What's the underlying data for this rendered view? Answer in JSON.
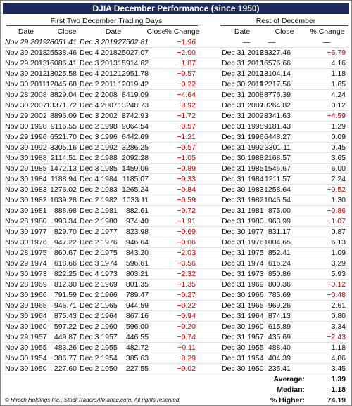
{
  "header": {
    "title": "DJIA December Performance (since 1950)",
    "groups": [
      "First Two December Trading Days",
      "Rest of December"
    ],
    "columns": [
      "Date",
      "Close",
      "Date",
      "Close",
      "% Change",
      "Date",
      "Close",
      "% Change"
    ]
  },
  "table": {
    "rows": [
      [
        "Nov 29 2019",
        "28051.41",
        "Dec 3 2019",
        "27502.81",
        "−1.96",
        "—",
        "—",
        "—"
      ],
      [
        "Nov 30 2018",
        "25538.46",
        "Dec 4 2018",
        "25027.07",
        "−2.00",
        "Dec 31 2018",
        "23327.46",
        "−6.79"
      ],
      [
        "Nov 29 2013",
        "16086.41",
        "Dec 3 2013",
        "15914.62",
        "−1.07",
        "Dec 31 2013",
        "16576.66",
        "4.16"
      ],
      [
        "Nov 30 2012",
        "13025.58",
        "Dec 4 2012",
        "12951.78",
        "−0.57",
        "Dec 31 2012",
        "13104.14",
        "1.18"
      ],
      [
        "Nov 30 2011",
        "12045.68",
        "Dec 2 2011",
        "12019.42",
        "−0.22",
        "Dec 30 2011",
        "12217.56",
        "1.65"
      ],
      [
        "Nov 28 2008",
        "8829.04",
        "Dec 2 2008",
        "8419.09",
        "−4.64",
        "Dec 31 2008",
        "8776.39",
        "4.24"
      ],
      [
        "Nov 30 2007",
        "13371.72",
        "Dec 4 2007",
        "13248.73",
        "−0.92",
        "Dec 31 2007",
        "13264.82",
        "0.12"
      ],
      [
        "Nov 29 2002",
        "8896.09",
        "Dec 3 2002",
        "8742.93",
        "−1.72",
        "Dec 31 2002",
        "8341.63",
        "−4.59"
      ],
      [
        "Nov 30 1998",
        "9116.55",
        "Dec 2 1998",
        "9064.54",
        "−0.57",
        "Dec 31 1998",
        "9181.43",
        "1.29"
      ],
      [
        "Nov 29 1996",
        "6521.70",
        "Dec 3 1996",
        "6442.69",
        "−1.21",
        "Dec 31 1996",
        "6448.27",
        "0.09"
      ],
      [
        "Nov 30 1992",
        "3305.16",
        "Dec 2 1992",
        "3286.25",
        "−0.57",
        "Dec 31 1992",
        "3301.11",
        "0.45"
      ],
      [
        "Nov 30 1988",
        "2114.51",
        "Dec 2 1988",
        "2092.28",
        "−1.05",
        "Dec 30 1988",
        "2168.57",
        "3.65"
      ],
      [
        "Nov 29 1985",
        "1472.13",
        "Dec 3 1985",
        "1459.06",
        "−0.89",
        "Dec 31 1985",
        "1546.67",
        "6.00"
      ],
      [
        "Nov 30 1984",
        "1188.94",
        "Dec 4 1984",
        "1185.07",
        "−0.33",
        "Dec 31 1984",
        "1211.57",
        "2.24"
      ],
      [
        "Nov 30 1983",
        "1276.02",
        "Dec 2 1983",
        "1265.24",
        "−0.84",
        "Dec 30 1983",
        "1258.64",
        "−0.52"
      ],
      [
        "Nov 30 1982",
        "1039.28",
        "Dec 2 1982",
        "1033.11",
        "−0.59",
        "Dec 31 1982",
        "1046.54",
        "1.30"
      ],
      [
        "Nov 30 1981",
        "888.98",
        "Dec 2 1981",
        "882.61",
        "−0.72",
        "Dec 31 1981",
        "875.00",
        "−0.86"
      ],
      [
        "Nov 28 1980",
        "993.34",
        "Dec 2 1980",
        "974.40",
        "−1.91",
        "Dec 31 1980",
        "963.99",
        "−1.07"
      ],
      [
        "Nov 30 1977",
        "829.70",
        "Dec 2 1977",
        "823.98",
        "−0.69",
        "Dec 30 1977",
        "831.17",
        "0.87"
      ],
      [
        "Nov 30 1976",
        "947.22",
        "Dec 2 1976",
        "946.64",
        "−0.06",
        "Dec 31 1976",
        "1004.65",
        "6.13"
      ],
      [
        "Nov 28 1975",
        "860.67",
        "Dec 2 1975",
        "843.20",
        "−2.03",
        "Dec 31 1975",
        "852.41",
        "1.09"
      ],
      [
        "Nov 29 1974",
        "618.66",
        "Dec 3 1974",
        "596.61",
        "−3.56",
        "Dec 31 1974",
        "616.24",
        "3.29"
      ],
      [
        "Nov 30 1973",
        "822.25",
        "Dec 4 1973",
        "803.21",
        "−2.32",
        "Dec 31 1973",
        "850.86",
        "5.93"
      ],
      [
        "Nov 28 1969",
        "812.30",
        "Dec 2 1969",
        "801.35",
        "−1.35",
        "Dec 31 1969",
        "800.36",
        "−0.12"
      ],
      [
        "Nov 30 1966",
        "791.59",
        "Dec 2 1966",
        "789.47",
        "−0.27",
        "Dec 30 1966",
        "785.69",
        "−0.48"
      ],
      [
        "Nov 30 1965",
        "946.71",
        "Dec 2 1965",
        "944.59",
        "−0.22",
        "Dec 31 1965",
        "969.26",
        "2.61"
      ],
      [
        "Nov 30 1964",
        "875.43",
        "Dec 2 1964",
        "867.16",
        "−0.94",
        "Dec 31 1964",
        "874.13",
        "0.80"
      ],
      [
        "Nov 30 1960",
        "597.22",
        "Dec 2 1960",
        "596.00",
        "−0.20",
        "Dec 30 1960",
        "615.89",
        "3.34"
      ],
      [
        "Nov 29 1957",
        "449.87",
        "Dec 3 1957",
        "446.55",
        "−0.74",
        "Dec 31 1957",
        "435.69",
        "−2.43"
      ],
      [
        "Nov 30 1955",
        "483.26",
        "Dec 2 1955",
        "482.72",
        "−0.11",
        "Dec 30 1955",
        "488.40",
        "1.18"
      ],
      [
        "Nov 30 1954",
        "386.77",
        "Dec 2 1954",
        "385.63",
        "−0.29",
        "Dec 31 1954",
        "404.39",
        "4.86"
      ],
      [
        "Nov 30 1950",
        "227.60",
        "Dec 2 1950",
        "227.55",
        "−0.02",
        "Dec 30 1950",
        "235.41",
        "3.45"
      ]
    ]
  },
  "summary": [
    {
      "label": "Average:",
      "value": "1.39"
    },
    {
      "label": "Median:",
      "value": "1.18"
    },
    {
      "label": "% Higher:",
      "value": "74.19"
    }
  ],
  "footer": "© Hirsch Holdings Inc., StockTradersAlmanac.com. All rights reserved."
}
